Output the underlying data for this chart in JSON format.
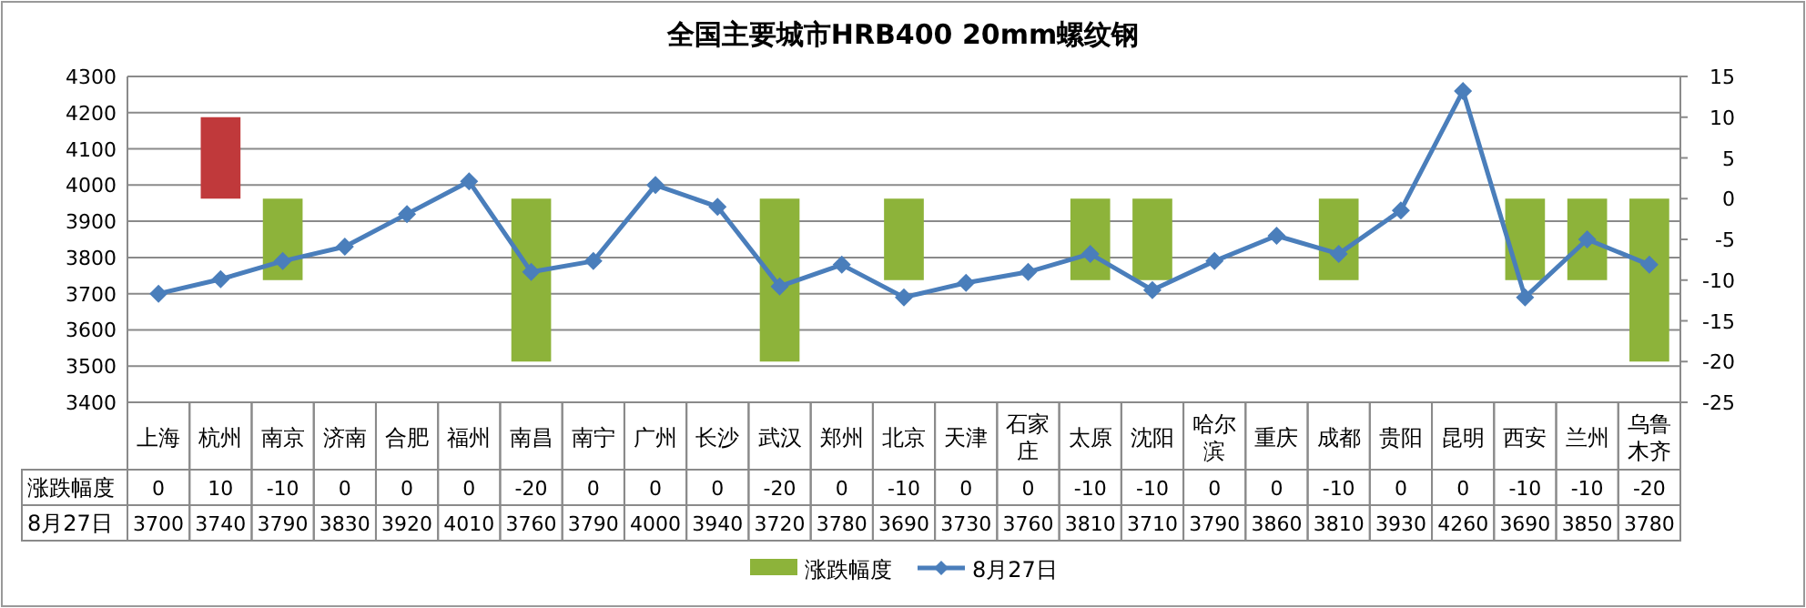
{
  "chart_data": {
    "type": "bar",
    "title": "全国主要城市HRB400 20mm螺纹钢",
    "categories": [
      "上海",
      "杭州",
      "南京",
      "济南",
      "合肥",
      "福州",
      "南昌",
      "南宁",
      "广州",
      "长沙",
      "武汉",
      "郑州",
      "北京",
      "天津",
      "石家庄",
      "太原",
      "沈阳",
      "哈尔滨",
      "重庆",
      "成都",
      "贵阳",
      "昆明",
      "西安",
      "兰州",
      "乌鲁木齐"
    ],
    "series": [
      {
        "name": "涨跌幅度",
        "axis": "y2",
        "color": "#8db33a",
        "colors": [
          "#8db33a",
          "#c0393b",
          "#8db33a",
          "#8db33a",
          "#8db33a",
          "#8db33a",
          "#8db33a",
          "#8db33a",
          "#8db33a",
          "#8db33a",
          "#8db33a",
          "#8db33a",
          "#8db33a",
          "#8db33a",
          "#8db33a",
          "#8db33a",
          "#8db33a",
          "#8db33a",
          "#8db33a",
          "#8db33a",
          "#8db33a",
          "#8db33a",
          "#8db33a",
          "#8db33a",
          "#8db33a"
        ],
        "values": [
          0,
          10,
          -10,
          0,
          0,
          0,
          -20,
          0,
          0,
          0,
          -20,
          0,
          -10,
          0,
          0,
          -10,
          -10,
          0,
          0,
          -10,
          0,
          0,
          -10,
          -10,
          -20
        ]
      },
      {
        "name": "8月27日",
        "type": "line",
        "color": "#4a7ebb",
        "marker": "diamond",
        "values": [
          3700,
          3740,
          3790,
          3830,
          3920,
          4010,
          3760,
          3790,
          4000,
          3940,
          3720,
          3780,
          3690,
          3730,
          3760,
          3810,
          3710,
          3790,
          3860,
          3810,
          3930,
          4260,
          3690,
          3850,
          3780
        ]
      }
    ],
    "ylim": [
      3400,
      4300
    ],
    "yticks": [
      3400,
      3500,
      3600,
      3700,
      3800,
      3900,
      4000,
      4100,
      4200,
      4300
    ],
    "y2lim": [
      -25,
      15
    ],
    "y2ticks": [
      -25,
      -20,
      -15,
      -10,
      -5,
      0,
      5,
      10,
      15
    ],
    "grid": "y",
    "legend": "bottom",
    "data_labels": true
  }
}
